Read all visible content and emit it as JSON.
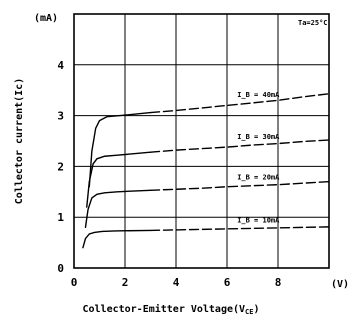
{
  "chart_data": {
    "type": "line",
    "xlabel": "Collector-Emitter Voltage(V",
    "xlabel_subscript": "CE",
    "xlabel_close": ")",
    "ylabel": "Collector current(Ic)",
    "x_unit_label": "(V)",
    "y_unit_label": "(mA)",
    "annotation": "Ta=25°C",
    "xlim": [
      0,
      10
    ],
    "ylim": [
      0,
      5
    ],
    "x_ticks": [
      "0",
      "2",
      "4",
      "6",
      "8"
    ],
    "y_ticks": [
      "0",
      "1",
      "2",
      "3",
      "4"
    ],
    "grid": true,
    "series": [
      {
        "label": "I_B = 40mA",
        "x": [
          0.6,
          0.7,
          0.85,
          1.0,
          1.3,
          1.8,
          3,
          4,
          5,
          6,
          7,
          8,
          9,
          10
        ],
        "y": [
          1.6,
          2.3,
          2.75,
          2.9,
          2.98,
          3.0,
          3.06,
          3.1,
          3.15,
          3.2,
          3.25,
          3.3,
          3.37,
          3.43
        ]
      },
      {
        "label": "I_B = 30mA",
        "x": [
          0.5,
          0.6,
          0.75,
          0.9,
          1.2,
          1.7,
          3,
          4,
          5,
          6,
          7,
          8,
          9,
          10
        ],
        "y": [
          1.2,
          1.7,
          2.05,
          2.15,
          2.2,
          2.22,
          2.28,
          2.32,
          2.35,
          2.38,
          2.42,
          2.45,
          2.49,
          2.52
        ]
      },
      {
        "label": "I_B = 20mA",
        "x": [
          0.45,
          0.55,
          0.7,
          0.9,
          1.2,
          1.7,
          3,
          4,
          5,
          6,
          7,
          8,
          9,
          10
        ],
        "y": [
          0.8,
          1.15,
          1.38,
          1.45,
          1.48,
          1.5,
          1.53,
          1.55,
          1.57,
          1.6,
          1.62,
          1.64,
          1.67,
          1.7
        ]
      },
      {
        "label": "I_B = 10mA",
        "x": [
          0.35,
          0.45,
          0.6,
          0.8,
          1.1,
          1.6,
          3,
          4,
          5,
          6,
          7,
          8,
          9,
          10
        ],
        "y": [
          0.4,
          0.58,
          0.67,
          0.7,
          0.72,
          0.73,
          0.74,
          0.75,
          0.76,
          0.77,
          0.78,
          0.79,
          0.8,
          0.81
        ]
      }
    ]
  }
}
